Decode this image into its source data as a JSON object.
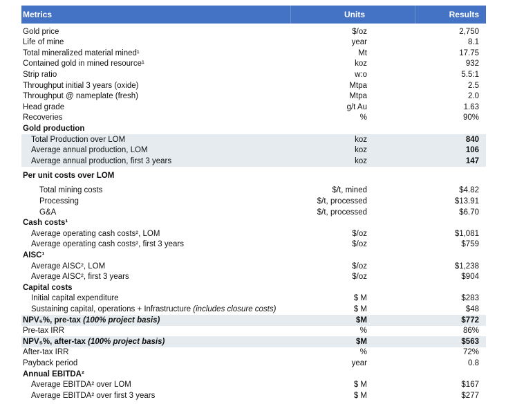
{
  "header": {
    "metrics": "Metrics",
    "units": "Units",
    "results": "Results"
  },
  "rows": [
    {
      "label": "Gold price",
      "units": "$/oz",
      "result": "2,750",
      "level": 0
    },
    {
      "label": "Life of mine",
      "units": "year",
      "result": "8.1",
      "level": 0
    },
    {
      "label": "Total mineralized material mined¹",
      "units": "Mt",
      "result": "17.75",
      "level": 0
    },
    {
      "label": "Contained gold in mined resource¹",
      "units": "koz",
      "result": "932",
      "level": 0
    },
    {
      "label": "Strip ratio",
      "units": "w:o",
      "result": "5.5:1",
      "level": 0
    },
    {
      "label": "Throughput initial 3 years (oxide)",
      "units": "Mtpa",
      "result": "2.5",
      "level": 0
    },
    {
      "label": "Throughput @ nameplate (fresh)",
      "units": "Mtpa",
      "result": "2.0",
      "level": 0
    },
    {
      "label": "Head grade",
      "units": "g/t Au",
      "result": "1.63",
      "level": 0
    },
    {
      "label": "Recoveries",
      "units": "%",
      "result": "90%",
      "level": 0
    },
    {
      "label": "Gold production",
      "heading": true,
      "level": 0
    },
    {
      "label": "Total Production over LOM",
      "units": "koz",
      "result": "840",
      "level": 1,
      "shaded": true,
      "emphasis": "result"
    },
    {
      "label": "Average annual production, LOM",
      "units": "koz",
      "result": "106",
      "level": 1,
      "shaded": true,
      "emphasis": "result"
    },
    {
      "label": "Average annual production, first 3 years",
      "units": "koz",
      "result": "147",
      "level": 1,
      "shaded": true,
      "emphasis": "result"
    },
    {
      "label": "Per unit costs over LOM",
      "heading": true,
      "level": 0
    },
    {
      "label": "Total mining costs",
      "units": "$/t, mined",
      "result": "$4.82",
      "level": 2
    },
    {
      "label": "Processing",
      "units": "$/t, processed",
      "result": "$13.91",
      "level": 2
    },
    {
      "label": "G&A",
      "units": "$/t, processed",
      "result": "$6.70",
      "level": 2
    },
    {
      "label": "Cash costs¹",
      "heading": true,
      "level": 0
    },
    {
      "label": "Average operating cash costs², LOM",
      "units": "$/oz",
      "result": "$1,081",
      "level": 1
    },
    {
      "label": "Average operating cash costs², first 3 years",
      "units": "$/oz",
      "result": "$759",
      "level": 1
    },
    {
      "label": "AISC¹",
      "heading": true,
      "level": 0
    },
    {
      "label": "Average AISC², LOM",
      "units": "$/oz",
      "result": "$1,238",
      "level": 1
    },
    {
      "label": "Average AISC², first 3 years",
      "units": "$/oz",
      "result": "$904",
      "level": 1
    },
    {
      "label": "Capital costs",
      "heading": true,
      "level": 0
    },
    {
      "label": "Initial capital expenditure",
      "units": "$ M",
      "result": "$283",
      "level": 1
    },
    {
      "label": "Sustaining capital, operations + Infrastructure",
      "note": "(includes closure costs)",
      "units": "$ M",
      "result": "$48",
      "level": 1
    },
    {
      "label": "NPV₅%, pre-tax",
      "note": "(100% project basis)",
      "units": "$M",
      "result": "$772",
      "level": 0,
      "shaded": true,
      "emphasis": "all"
    },
    {
      "label": "Pre-tax IRR",
      "units": "%",
      "result": "86%",
      "level": 0
    },
    {
      "label": "NPV₅%, after-tax",
      "note": "(100% project basis)",
      "units": "$M",
      "result": "$563",
      "level": 0,
      "shaded": true,
      "emphasis": "all"
    },
    {
      "label": "After-tax IRR",
      "units": "%",
      "result": "72%",
      "level": 0
    },
    {
      "label": "Payback period",
      "units": "year",
      "result": "0.8",
      "level": 0
    },
    {
      "label": "Annual EBITDA²",
      "heading": true,
      "level": 0
    },
    {
      "label": "Average EBITDA² over LOM",
      "units": "$ M",
      "result": "$167",
      "level": 1
    },
    {
      "label": "Average EBITDA² over first 3 years",
      "units": "$ M",
      "result": "$277",
      "level": 1
    }
  ]
}
